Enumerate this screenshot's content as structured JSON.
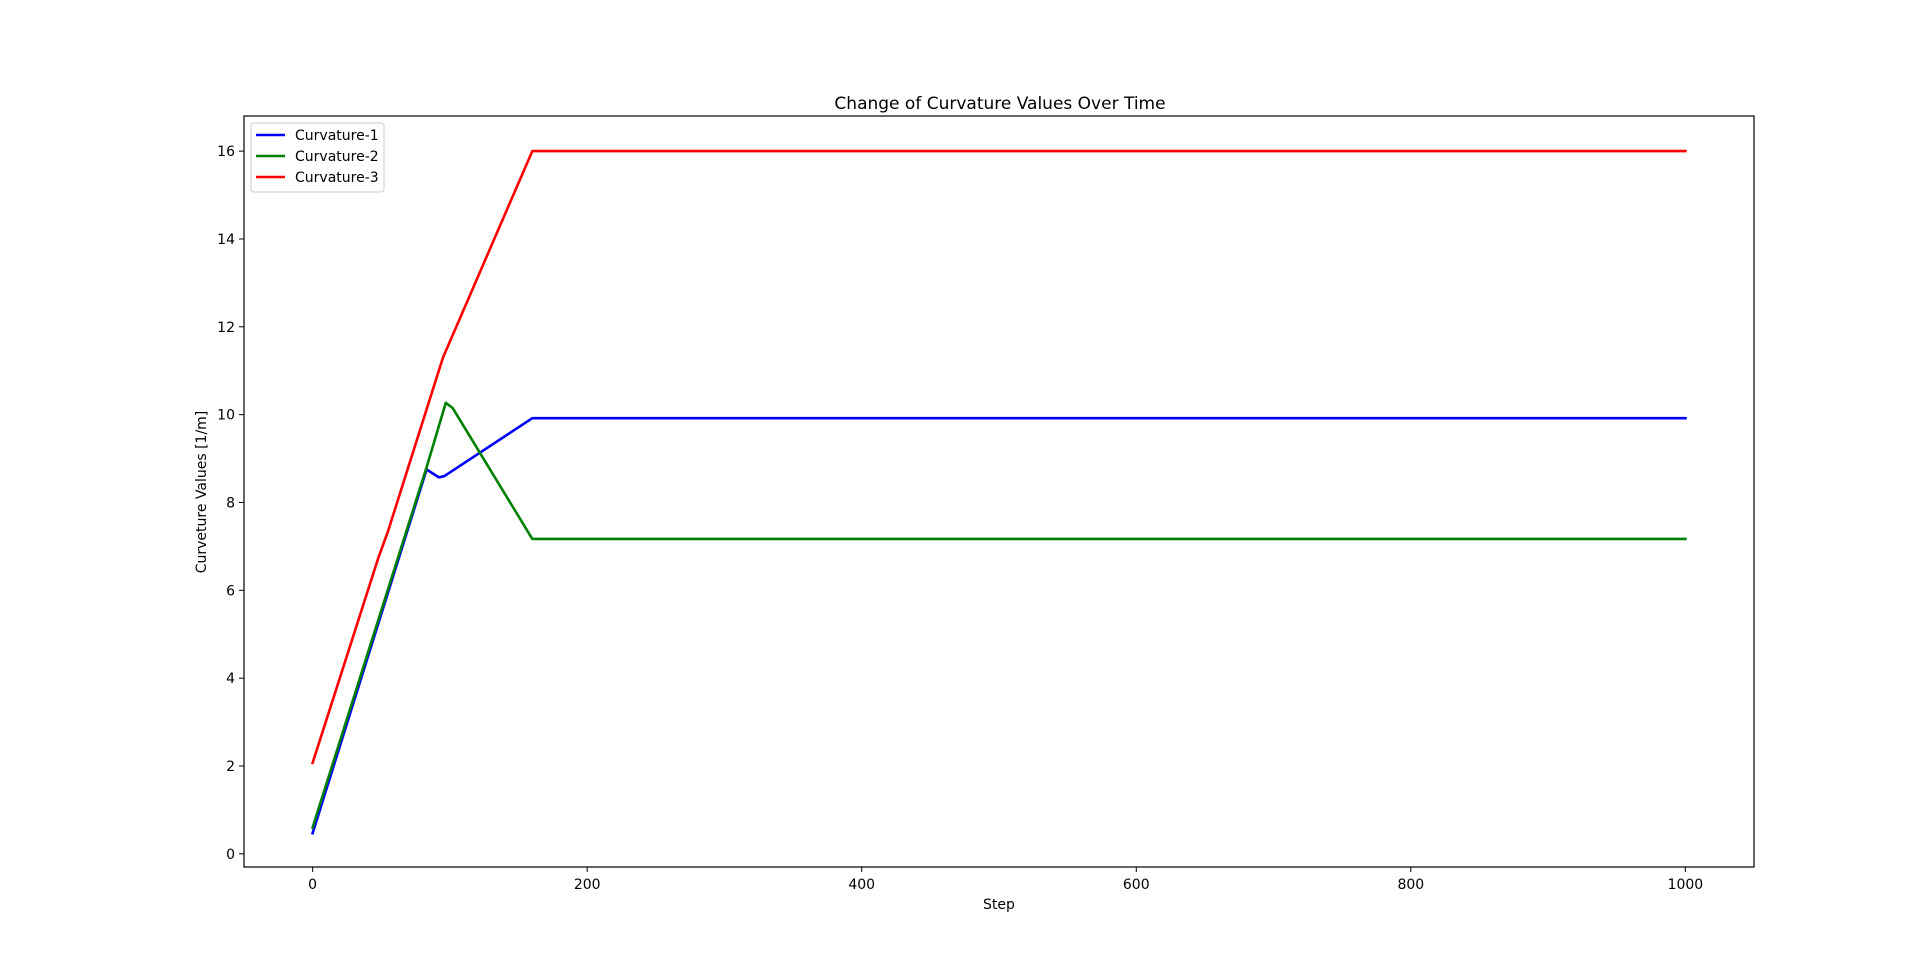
{
  "chart_data": {
    "type": "line",
    "title": "Change of Curvature Values Over Time",
    "xlabel": "Step",
    "ylabel": "Curveture Values [1/m]",
    "xlim": [
      -50,
      1050
    ],
    "ylim": [
      -0.3,
      16.8
    ],
    "x_ticks": [
      0,
      200,
      400,
      600,
      800,
      1000
    ],
    "y_ticks": [
      0,
      2,
      4,
      6,
      8,
      10,
      12,
      14,
      16
    ],
    "grid": false,
    "legend_position": "top-left",
    "series": [
      {
        "name": "Curvature-1",
        "color": "#0000ff",
        "points": [
          [
            0,
            0.47
          ],
          [
            83,
            8.75
          ],
          [
            92,
            8.57
          ],
          [
            96,
            8.6
          ],
          [
            160,
            9.92
          ],
          [
            1000,
            9.92
          ]
        ]
      },
      {
        "name": "Curvature-2",
        "color": "#008000",
        "points": [
          [
            0,
            0.6
          ],
          [
            83,
            8.8
          ],
          [
            97,
            10.27
          ],
          [
            102,
            10.15
          ],
          [
            160,
            7.17
          ],
          [
            1000,
            7.17
          ]
        ]
      },
      {
        "name": "Curvature-3",
        "color": "#ff0000",
        "points": [
          [
            0,
            2.07
          ],
          [
            48,
            6.75
          ],
          [
            55,
            7.35
          ],
          [
            95,
            11.3
          ],
          [
            160,
            16.0
          ],
          [
            1000,
            16.0
          ]
        ]
      }
    ]
  }
}
